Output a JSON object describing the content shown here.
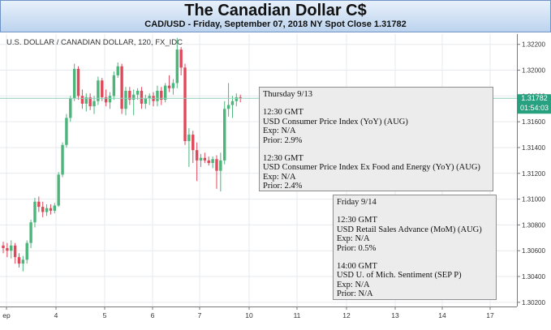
{
  "header": {
    "title": "The Canadian Dollar C$",
    "subtitle": "CAD/USD - Friday, September 07, 2018 NY Spot Close 1.31782"
  },
  "chart_data": {
    "type": "candlestick",
    "title": "U.S. DOLLAR / CANADIAN DOLLAR, 120, FX_IDC",
    "x_ticks": [
      "ep",
      "4",
      "5",
      "6",
      "7",
      "10",
      "11",
      "12",
      "13",
      "14",
      "17"
    ],
    "y_ticks": [
      "1.32200",
      "1.32000",
      "1.31800",
      "1.31600",
      "1.31400",
      "1.31200",
      "1.31000",
      "1.30800",
      "1.30600",
      "1.30400",
      "1.30200"
    ],
    "y_range": [
      1.3018,
      1.3228
    ],
    "last_price": "1.31782",
    "countdown": "01:54:03",
    "colors": {
      "up": "#4bb57a",
      "down": "#e0495b",
      "price_line": "#8fd0ba",
      "price_tag": "#27a17f",
      "grid": "#e6e9ee"
    },
    "candles": [
      {
        "o": 1.3064,
        "h": 1.3067,
        "l": 1.3058,
        "c": 1.3062
      },
      {
        "o": 1.3062,
        "h": 1.3066,
        "l": 1.3055,
        "c": 1.306
      },
      {
        "o": 1.306,
        "h": 1.3068,
        "l": 1.3054,
        "c": 1.3064
      },
      {
        "o": 1.3064,
        "h": 1.3066,
        "l": 1.305,
        "c": 1.3055
      },
      {
        "o": 1.3055,
        "h": 1.3058,
        "l": 1.3047,
        "c": 1.305
      },
      {
        "o": 1.305,
        "h": 1.3056,
        "l": 1.3044,
        "c": 1.3053
      },
      {
        "o": 1.3053,
        "h": 1.3068,
        "l": 1.305,
        "c": 1.3066
      },
      {
        "o": 1.3066,
        "h": 1.3084,
        "l": 1.3062,
        "c": 1.3082
      },
      {
        "o": 1.3082,
        "h": 1.3101,
        "l": 1.3078,
        "c": 1.3098
      },
      {
        "o": 1.3098,
        "h": 1.3102,
        "l": 1.309,
        "c": 1.3094
      },
      {
        "o": 1.3094,
        "h": 1.3098,
        "l": 1.3086,
        "c": 1.309
      },
      {
        "o": 1.309,
        "h": 1.3096,
        "l": 1.3087,
        "c": 1.3093
      },
      {
        "o": 1.3093,
        "h": 1.3096,
        "l": 1.3088,
        "c": 1.3091
      },
      {
        "o": 1.3091,
        "h": 1.3097,
        "l": 1.3089,
        "c": 1.3095
      },
      {
        "o": 1.3095,
        "h": 1.3121,
        "l": 1.3094,
        "c": 1.3119
      },
      {
        "o": 1.3119,
        "h": 1.3144,
        "l": 1.3117,
        "c": 1.3142
      },
      {
        "o": 1.3142,
        "h": 1.3166,
        "l": 1.314,
        "c": 1.3163
      },
      {
        "o": 1.3163,
        "h": 1.318,
        "l": 1.316,
        "c": 1.3178
      },
      {
        "o": 1.3178,
        "h": 1.3205,
        "l": 1.3176,
        "c": 1.3201
      },
      {
        "o": 1.3201,
        "h": 1.3203,
        "l": 1.3177,
        "c": 1.318
      },
      {
        "o": 1.318,
        "h": 1.3185,
        "l": 1.317,
        "c": 1.3174
      },
      {
        "o": 1.3174,
        "h": 1.3182,
        "l": 1.3168,
        "c": 1.3179
      },
      {
        "o": 1.3179,
        "h": 1.3182,
        "l": 1.3169,
        "c": 1.3172
      },
      {
        "o": 1.3172,
        "h": 1.318,
        "l": 1.3166,
        "c": 1.3176
      },
      {
        "o": 1.3176,
        "h": 1.3195,
        "l": 1.3173,
        "c": 1.3192
      },
      {
        "o": 1.3192,
        "h": 1.3194,
        "l": 1.3176,
        "c": 1.3179
      },
      {
        "o": 1.3179,
        "h": 1.3185,
        "l": 1.3172,
        "c": 1.3175
      },
      {
        "o": 1.3175,
        "h": 1.3183,
        "l": 1.317,
        "c": 1.318
      },
      {
        "o": 1.318,
        "h": 1.3199,
        "l": 1.3177,
        "c": 1.3196
      },
      {
        "o": 1.3196,
        "h": 1.3206,
        "l": 1.3194,
        "c": 1.3203
      },
      {
        "o": 1.3203,
        "h": 1.3205,
        "l": 1.3166,
        "c": 1.317
      },
      {
        "o": 1.317,
        "h": 1.3187,
        "l": 1.3165,
        "c": 1.3184
      },
      {
        "o": 1.3184,
        "h": 1.3187,
        "l": 1.3173,
        "c": 1.3177
      },
      {
        "o": 1.3177,
        "h": 1.3185,
        "l": 1.3165,
        "c": 1.3181
      },
      {
        "o": 1.3181,
        "h": 1.3186,
        "l": 1.3177,
        "c": 1.3184
      },
      {
        "o": 1.3184,
        "h": 1.3187,
        "l": 1.317,
        "c": 1.3174
      },
      {
        "o": 1.3174,
        "h": 1.3181,
        "l": 1.317,
        "c": 1.3178
      },
      {
        "o": 1.3178,
        "h": 1.3182,
        "l": 1.3173,
        "c": 1.318
      },
      {
        "o": 1.318,
        "h": 1.3183,
        "l": 1.3172,
        "c": 1.3176
      },
      {
        "o": 1.3176,
        "h": 1.3188,
        "l": 1.3172,
        "c": 1.3184
      },
      {
        "o": 1.3184,
        "h": 1.3187,
        "l": 1.3173,
        "c": 1.3177
      },
      {
        "o": 1.3177,
        "h": 1.319,
        "l": 1.3175,
        "c": 1.3188
      },
      {
        "o": 1.3188,
        "h": 1.3196,
        "l": 1.3183,
        "c": 1.3186
      },
      {
        "o": 1.3186,
        "h": 1.3193,
        "l": 1.3181,
        "c": 1.319
      },
      {
        "o": 1.319,
        "h": 1.3225,
        "l": 1.3186,
        "c": 1.3216
      },
      {
        "o": 1.3216,
        "h": 1.3218,
        "l": 1.3196,
        "c": 1.3202
      },
      {
        "o": 1.3202,
        "h": 1.3205,
        "l": 1.3142,
        "c": 1.3145
      },
      {
        "o": 1.3145,
        "h": 1.3155,
        "l": 1.3125,
        "c": 1.315
      },
      {
        "o": 1.315,
        "h": 1.3153,
        "l": 1.3128,
        "c": 1.3138
      },
      {
        "o": 1.3138,
        "h": 1.3144,
        "l": 1.3114,
        "c": 1.313
      },
      {
        "o": 1.313,
        "h": 1.3135,
        "l": 1.3125,
        "c": 1.3132
      },
      {
        "o": 1.3132,
        "h": 1.3136,
        "l": 1.3128,
        "c": 1.313
      },
      {
        "o": 1.313,
        "h": 1.3133,
        "l": 1.3126,
        "c": 1.3128
      },
      {
        "o": 1.3128,
        "h": 1.3133,
        "l": 1.3124,
        "c": 1.3131
      },
      {
        "o": 1.3131,
        "h": 1.3134,
        "l": 1.3108,
        "c": 1.3122
      },
      {
        "o": 1.3122,
        "h": 1.3136,
        "l": 1.3106,
        "c": 1.313
      },
      {
        "o": 1.313,
        "h": 1.3176,
        "l": 1.3127,
        "c": 1.317
      },
      {
        "o": 1.317,
        "h": 1.319,
        "l": 1.3164,
        "c": 1.3173
      },
      {
        "o": 1.3173,
        "h": 1.318,
        "l": 1.3163,
        "c": 1.3176
      },
      {
        "o": 1.3176,
        "h": 1.3182,
        "l": 1.3172,
        "c": 1.3179
      },
      {
        "o": 1.3179,
        "h": 1.3181,
        "l": 1.3175,
        "c": 1.3178
      }
    ]
  },
  "events": [
    {
      "date": "Thursday 9/13",
      "items": [
        {
          "time": "12:30 GMT",
          "name": "USD Consumer Price Index (YoY) (AUG)",
          "exp": "Exp: N/A",
          "prior": "Prior: 2.9%"
        },
        {
          "time": "12:30 GMT",
          "name": "USD Consumer Price Index Ex Food and Energy (YoY) (AUG)",
          "exp": "Exp: N/A",
          "prior": "Prior: 2.4%"
        }
      ]
    },
    {
      "date": "Friday 9/14",
      "items": [
        {
          "time": "12:30 GMT",
          "name": "USD Retail Sales Advance (MoM) (AUG)",
          "exp": "Exp: N/A",
          "prior": "Prior: 0.5%"
        },
        {
          "time": "14:00 GMT",
          "name": "USD U. of Mich. Sentiment (SEP P)",
          "exp": "Exp: N/A",
          "prior": "Prior: N/A"
        }
      ]
    }
  ]
}
